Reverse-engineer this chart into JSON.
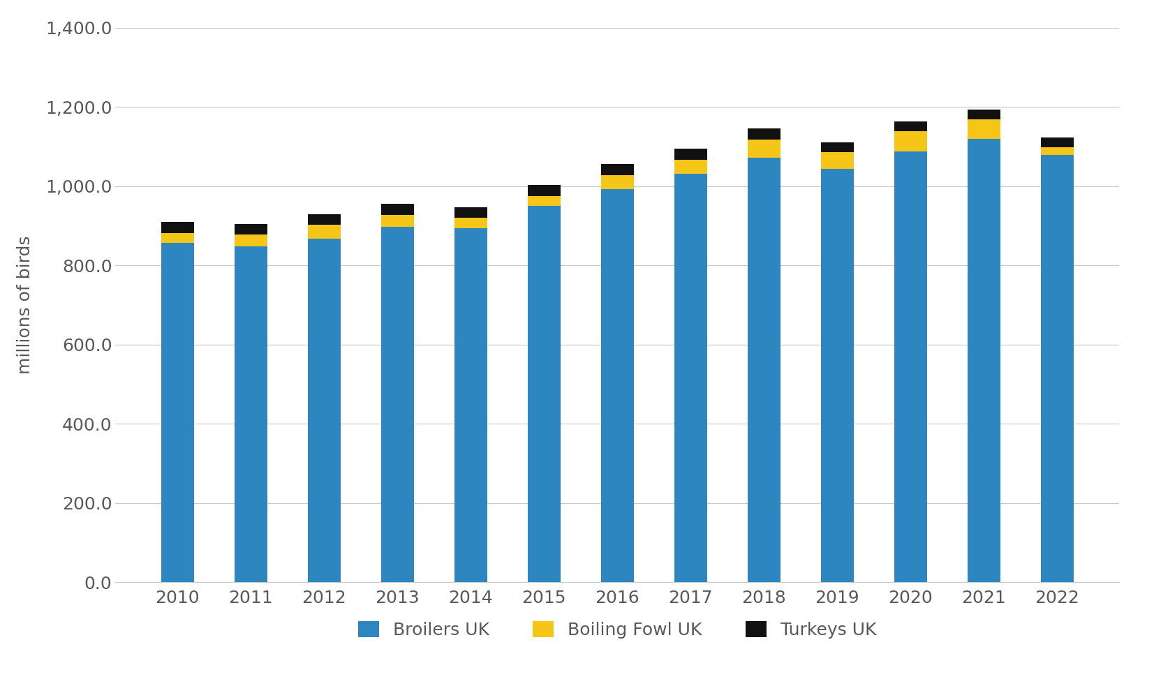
{
  "years": [
    2010,
    2011,
    2012,
    2013,
    2014,
    2015,
    2016,
    2017,
    2018,
    2019,
    2020,
    2021,
    2022
  ],
  "broilers": [
    857,
    848,
    868,
    898,
    893,
    950,
    992,
    1032,
    1072,
    1043,
    1088,
    1120,
    1078
  ],
  "boiling_fowl": [
    25,
    30,
    35,
    30,
    28,
    25,
    35,
    35,
    45,
    42,
    50,
    48,
    20
  ],
  "turkeys": [
    28,
    26,
    26,
    28,
    26,
    28,
    28,
    28,
    28,
    26,
    26,
    26,
    24
  ],
  "broiler_color": "#2E86C1",
  "boiling_fowl_color": "#F5C518",
  "turkey_color": "#111111",
  "ylabel": "millions of birds",
  "ylim": [
    0,
    1400
  ],
  "yticks": [
    0,
    200,
    400,
    600,
    800,
    1000,
    1200,
    1400
  ],
  "legend_labels": [
    "Broilers UK",
    "Boiling Fowl UK",
    "Turkeys UK"
  ],
  "background_color": "#ffffff",
  "grid_color": "#c8c8c8",
  "tick_color": "#595959",
  "bar_width": 0.45
}
